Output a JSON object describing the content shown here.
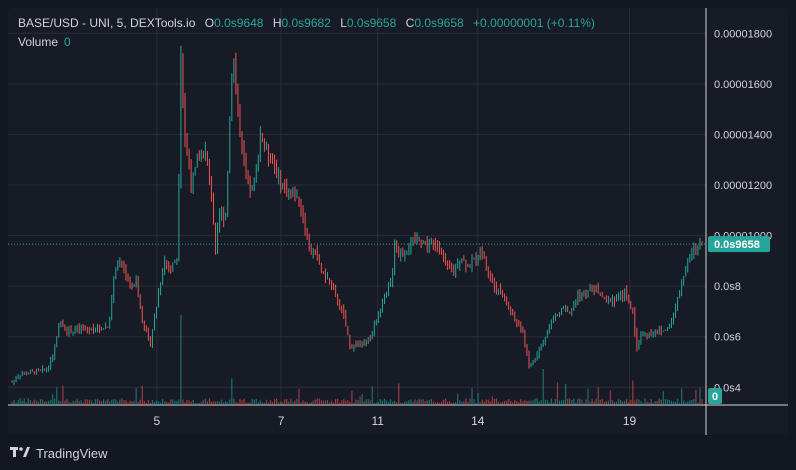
{
  "legend": {
    "symbol": "BASE/USD - UNI, 5, DEXTools.io",
    "o_label": "O",
    "o_value": "0.0s9648",
    "h_label": "H",
    "h_value": "0.0s9682",
    "l_label": "L",
    "l_value": "0.0s9658",
    "c_label": "C",
    "c_value": "0.0s9658",
    "change": "+0.00000001 (+0.11%)",
    "volume_label": "Volume",
    "volume_value": "0"
  },
  "footer": {
    "brand": "TradingView",
    "logo_icon": "tradingview-logo-icon"
  },
  "colors": {
    "up": "#26a69a",
    "down": "#ef5350",
    "grid": "#2a2e39",
    "bg": "#171b26"
  },
  "chart_data": {
    "type": "candlestick",
    "symbol": "BASE/USD - UNI, 5, DEXTools.io",
    "ylim": [
      3.3e-06,
      1.9e-05
    ],
    "y_ticks": [
      {
        "value": 1.8e-05,
        "label": "0.00001800"
      },
      {
        "value": 1.6e-05,
        "label": "0.00001600"
      },
      {
        "value": 1.4e-05,
        "label": "0.00001400"
      },
      {
        "value": 1.2e-05,
        "label": "0.00001200"
      },
      {
        "value": 1e-05,
        "label": "0.00001000"
      },
      {
        "value": 8e-06,
        "label": "0.0s8"
      },
      {
        "value": 6e-06,
        "label": "0.0s6"
      },
      {
        "value": 4e-06,
        "label": "0.0s4"
      }
    ],
    "x_ticks": [
      {
        "pos": 0.21,
        "label": "5"
      },
      {
        "pos": 0.39,
        "label": "7"
      },
      {
        "pos": 0.53,
        "label": "11"
      },
      {
        "pos": 0.675,
        "label": "14"
      },
      {
        "pos": 0.895,
        "label": "19"
      }
    ],
    "last_price": 9.66e-06,
    "last_price_label": "0.0s9658",
    "volume_label_value": "0",
    "price_path": [
      [
        0.0,
        4.2e-06
      ],
      [
        0.01,
        4.5e-06
      ],
      [
        0.03,
        4.6e-06
      ],
      [
        0.05,
        4.7e-06
      ],
      [
        0.06,
        5.3e-06
      ],
      [
        0.07,
        6.6e-06
      ],
      [
        0.08,
        6.2e-06
      ],
      [
        0.1,
        6.3e-06
      ],
      [
        0.12,
        6.3e-06
      ],
      [
        0.14,
        6.4e-06
      ],
      [
        0.15,
        8.8e-06
      ],
      [
        0.16,
        8.9e-06
      ],
      [
        0.17,
        8e-06
      ],
      [
        0.18,
        8.2e-06
      ],
      [
        0.19,
        6.5e-06
      ],
      [
        0.2,
        5.7e-06
      ],
      [
        0.21,
        7.3e-06
      ],
      [
        0.22,
        9e-06
      ],
      [
        0.23,
        8.7e-06
      ],
      [
        0.24,
        9.2e-06
      ],
      [
        0.245,
        1.75e-05
      ],
      [
        0.25,
        1.4e-05
      ],
      [
        0.26,
        1.2e-05
      ],
      [
        0.27,
        1.3e-05
      ],
      [
        0.28,
        1.33e-05
      ],
      [
        0.29,
        1.15e-05
      ],
      [
        0.295,
        9.2e-06
      ],
      [
        0.3,
        1.08e-05
      ],
      [
        0.31,
        1.08e-05
      ],
      [
        0.32,
        1.75e-05
      ],
      [
        0.33,
        1.4e-05
      ],
      [
        0.34,
        1.2e-05
      ],
      [
        0.35,
        1.18e-05
      ],
      [
        0.36,
        1.4e-05
      ],
      [
        0.37,
        1.33e-05
      ],
      [
        0.38,
        1.28e-05
      ],
      [
        0.39,
        1.2e-05
      ],
      [
        0.4,
        1.18e-05
      ],
      [
        0.41,
        1.16e-05
      ],
      [
        0.42,
        1.1e-05
      ],
      [
        0.43,
        9.5e-06
      ],
      [
        0.44,
        9.3e-06
      ],
      [
        0.45,
        8.5e-06
      ],
      [
        0.46,
        8.2e-06
      ],
      [
        0.47,
        7.5e-06
      ],
      [
        0.48,
        6.9e-06
      ],
      [
        0.49,
        5.6e-06
      ],
      [
        0.5,
        5.7e-06
      ],
      [
        0.51,
        5.7e-06
      ],
      [
        0.52,
        6e-06
      ],
      [
        0.53,
        6.8e-06
      ],
      [
        0.54,
        7.5e-06
      ],
      [
        0.55,
        8.2e-06
      ],
      [
        0.555,
        9.8e-06
      ],
      [
        0.56,
        9.2e-06
      ],
      [
        0.57,
        9.4e-06
      ],
      [
        0.58,
        9.7e-06
      ],
      [
        0.59,
        9.9e-06
      ],
      [
        0.6,
        9.7e-06
      ],
      [
        0.61,
        9.6e-06
      ],
      [
        0.62,
        9.6e-06
      ],
      [
        0.63,
        8.7e-06
      ],
      [
        0.64,
        8.6e-06
      ],
      [
        0.65,
        9.2e-06
      ],
      [
        0.66,
        8.8e-06
      ],
      [
        0.67,
        9e-06
      ],
      [
        0.68,
        9.5e-06
      ],
      [
        0.69,
        8.6e-06
      ],
      [
        0.7,
        7.9e-06
      ],
      [
        0.71,
        7.7e-06
      ],
      [
        0.72,
        7.1e-06
      ],
      [
        0.73,
        6.6e-06
      ],
      [
        0.74,
        6.2e-06
      ],
      [
        0.75,
        4.8e-06
      ],
      [
        0.76,
        5.2e-06
      ],
      [
        0.77,
        5.8e-06
      ],
      [
        0.78,
        6.6e-06
      ],
      [
        0.79,
        6.8e-06
      ],
      [
        0.8,
        7.2e-06
      ],
      [
        0.81,
        6.9e-06
      ],
      [
        0.82,
        7.7e-06
      ],
      [
        0.83,
        7.6e-06
      ],
      [
        0.84,
        7.9e-06
      ],
      [
        0.85,
        7.8e-06
      ],
      [
        0.86,
        7.4e-06
      ],
      [
        0.87,
        7.5e-06
      ],
      [
        0.88,
        7.5e-06
      ],
      [
        0.89,
        7.8e-06
      ],
      [
        0.9,
        6.9e-06
      ],
      [
        0.905,
        5.5e-06
      ],
      [
        0.91,
        6e-06
      ],
      [
        0.92,
        6.1e-06
      ],
      [
        0.93,
        6.2e-06
      ],
      [
        0.94,
        6.2e-06
      ],
      [
        0.95,
        6.3e-06
      ],
      [
        0.96,
        7e-06
      ],
      [
        0.97,
        8.1e-06
      ],
      [
        0.98,
        9e-06
      ],
      [
        0.99,
        9.5e-06
      ],
      [
        1.0,
        9.66e-06
      ]
    ],
    "volume_spikes": [
      {
        "pos": 0.245,
        "rel": 0.75
      },
      {
        "pos": 0.32,
        "rel": 0.22
      },
      {
        "pos": 0.77,
        "rel": 0.3
      },
      {
        "pos": 0.56,
        "rel": 0.18
      },
      {
        "pos": 0.18,
        "rel": 0.14
      },
      {
        "pos": 0.9,
        "rel": 0.12
      }
    ]
  }
}
